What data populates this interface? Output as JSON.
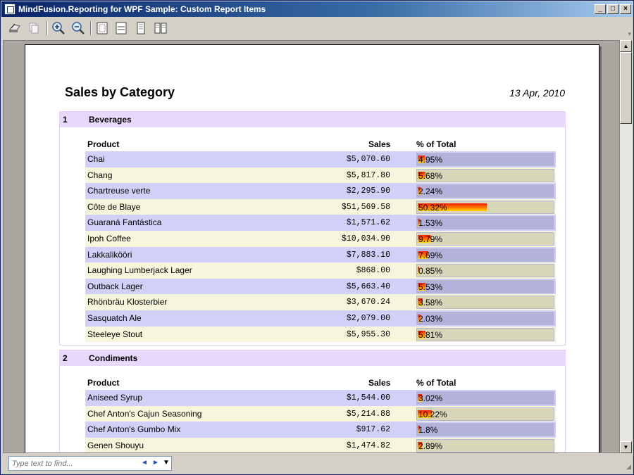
{
  "window": {
    "title": "MindFusion.Reporting for WPF Sample: Custom Report Items",
    "minimize": "_",
    "maximize": "□",
    "close": "×"
  },
  "toolbar": {
    "buttons": [
      "print-icon",
      "copy-icon",
      "zoom-in-icon",
      "zoom-out-icon",
      "fit-page-icon",
      "fit-width-icon",
      "single-page-icon",
      "two-pages-icon"
    ]
  },
  "report": {
    "title": "Sales by Category",
    "date": "13 Apr, 2010",
    "columns": {
      "product": "Product",
      "sales": "Sales",
      "percent": "% of Total"
    },
    "categories": [
      {
        "num": "1",
        "name": "Beverages",
        "rows": [
          {
            "product": "Chai",
            "sales": "$5,070.60",
            "pct_label": "4.95%",
            "pct": 4.95
          },
          {
            "product": "Chang",
            "sales": "$5,817.80",
            "pct_label": "5.68%",
            "pct": 5.68
          },
          {
            "product": "Chartreuse verte",
            "sales": "$2,295.90",
            "pct_label": "2.24%",
            "pct": 2.24
          },
          {
            "product": "Côte de Blaye",
            "sales": "$51,569.58",
            "pct_label": "50.32%",
            "pct": 50.32
          },
          {
            "product": "Guaraná Fantástica",
            "sales": "$1,571.62",
            "pct_label": "1.53%",
            "pct": 1.53
          },
          {
            "product": "Ipoh Coffee",
            "sales": "$10,034.90",
            "pct_label": "9.79%",
            "pct": 9.79
          },
          {
            "product": "Lakkalikööri",
            "sales": "$7,883.10",
            "pct_label": "7.69%",
            "pct": 7.69
          },
          {
            "product": "Laughing Lumberjack Lager",
            "sales": "$868.00",
            "pct_label": "0.85%",
            "pct": 0.85
          },
          {
            "product": "Outback Lager",
            "sales": "$5,663.40",
            "pct_label": "5.53%",
            "pct": 5.53
          },
          {
            "product": "Rhönbräu Klosterbier",
            "sales": "$3,670.24",
            "pct_label": "3.58%",
            "pct": 3.58
          },
          {
            "product": "Sasquatch Ale",
            "sales": "$2,079.00",
            "pct_label": "2.03%",
            "pct": 2.03
          },
          {
            "product": "Steeleye Stout",
            "sales": "$5,955.30",
            "pct_label": "5.81%",
            "pct": 5.81
          }
        ]
      },
      {
        "num": "2",
        "name": "Condiments",
        "rows": [
          {
            "product": "Aniseed Syrup",
            "sales": "$1,544.00",
            "pct_label": "3.02%",
            "pct": 3.02
          },
          {
            "product": "Chef Anton's Cajun Seasoning",
            "sales": "$5,214.88",
            "pct_label": "10.22%",
            "pct": 10.22
          },
          {
            "product": "Chef Anton's Gumbo Mix",
            "sales": "$917.62",
            "pct_label": "1.8%",
            "pct": 1.8
          },
          {
            "product": "Genen Shouyu",
            "sales": "$1,474.82",
            "pct_label": "2.89%",
            "pct": 2.89
          }
        ]
      }
    ]
  },
  "find": {
    "placeholder": "Type text to find...",
    "prev": "◄",
    "next": "►",
    "menu": "▼"
  }
}
